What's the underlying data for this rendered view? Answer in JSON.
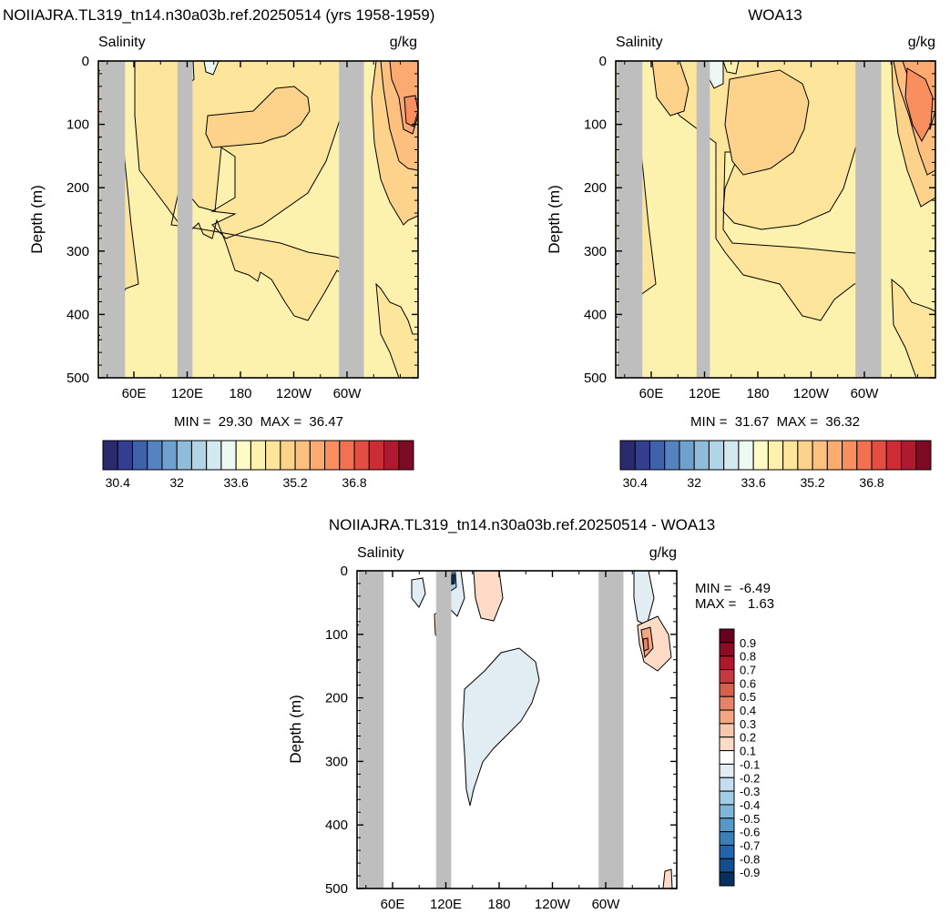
{
  "chart_data": [
    {
      "type": "heatmap",
      "title": "NOIIAJRA.TL319_tn14.n30a03b.ref.20250514 (yrs 1958-1959)",
      "left_label": "Salinity",
      "right_label": "g/kg",
      "ylabel": "Depth (m)",
      "ylim": [
        500,
        0
      ],
      "y_ticks": [
        "0",
        "100",
        "200",
        "300",
        "400",
        "500"
      ],
      "x_ticks": [
        "60E",
        "120E",
        "180",
        "120W",
        "60W"
      ],
      "x_tick_values": [
        60,
        120,
        180,
        240,
        300
      ],
      "xlim": [
        20,
        380
      ],
      "land_bands_deg": [
        [
          22,
          50
        ],
        [
          109,
          126
        ],
        [
          291,
          319
        ]
      ],
      "stats": "MIN =  29.30  MAX =  36.47",
      "colorbar": {
        "orientation": "horizontal",
        "tick_labels": [
          "30.4",
          "32",
          "33.6",
          "35.2",
          "36.8"
        ],
        "colors": [
          "#2c2a6f",
          "#333e8f",
          "#3e63a9",
          "#5583bf",
          "#6fa1ce",
          "#90bcdb",
          "#b1d5e6",
          "#d2e9ef",
          "#eef8f3",
          "#fdfcc8",
          "#fdf2ad",
          "#fde59b",
          "#fdd38b",
          "#fdc07e",
          "#fcaa6f",
          "#f98f5f",
          "#f27150",
          "#e24e41",
          "#cc2d35",
          "#ae1a30",
          "#7e0b25"
        ]
      }
    },
    {
      "type": "heatmap",
      "title": "WOA13",
      "left_label": "Salinity",
      "right_label": "g/kg",
      "ylabel": "Depth (m)",
      "ylim": [
        500,
        0
      ],
      "y_ticks": [
        "0",
        "100",
        "200",
        "300",
        "400",
        "500"
      ],
      "x_ticks": [
        "60E",
        "120E",
        "180",
        "120W",
        "60W"
      ],
      "x_tick_values": [
        60,
        120,
        180,
        240,
        300
      ],
      "xlim": [
        20,
        380
      ],
      "land_bands_deg": [
        [
          22,
          50
        ],
        [
          111,
          126
        ],
        [
          290,
          319
        ]
      ],
      "stats": "MIN =  31.67  MAX =  36.32",
      "colorbar": {
        "orientation": "horizontal",
        "tick_labels": [
          "30.4",
          "32",
          "33.6",
          "35.2",
          "36.8"
        ]
      }
    },
    {
      "type": "heatmap",
      "title": "NOIIAJRA.TL319_tn14.n30a03b.ref.20250514 - WOA13",
      "left_label": "Salinity",
      "right_label": "g/kg",
      "ylabel": "Depth (m)",
      "ylim": [
        500,
        0
      ],
      "y_ticks": [
        "0",
        "100",
        "200",
        "300",
        "400",
        "500"
      ],
      "x_ticks": [
        "60E",
        "120E",
        "180",
        "120W",
        "60W"
      ],
      "x_tick_values": [
        60,
        120,
        180,
        240,
        300
      ],
      "xlim": [
        20,
        380
      ],
      "land_bands_deg": [
        [
          22,
          50
        ],
        [
          109,
          126
        ],
        [
          292,
          320
        ]
      ],
      "stats": [
        "MIN =  -6.49",
        "MAX =   1.63"
      ],
      "colorbar": {
        "orientation": "vertical",
        "tick_labels": [
          "0.9",
          "0.8",
          "0.7",
          "0.6",
          "0.5",
          "0.4",
          "0.3",
          "0.2",
          "0.1",
          "-0.1",
          "-0.2",
          "-0.3",
          "-0.4",
          "-0.5",
          "-0.6",
          "-0.7",
          "-0.8",
          "-0.9"
        ],
        "colors": [
          "#67001f",
          "#8e0b24",
          "#b2182b",
          "#c5393e",
          "#d6604d",
          "#e58267",
          "#f4a582",
          "#f8c8ad",
          "#fddbc7",
          "#ffffff",
          "#e1edf3",
          "#c4def0",
          "#a3cde6",
          "#7fb7d8",
          "#5698c6",
          "#3a7fb8",
          "#2166ac",
          "#134d8c",
          "#053061"
        ]
      }
    }
  ],
  "colors": {
    "land": "#bebebe",
    "panel1_base": "#fdf2ad",
    "panel1_mid": "#fde59b",
    "panel1_high": "#fdd38b",
    "panel1_higher": "#fdc07e",
    "panel1_top": "#fcaa6f",
    "panel1_peak": "#f98f5f"
  }
}
